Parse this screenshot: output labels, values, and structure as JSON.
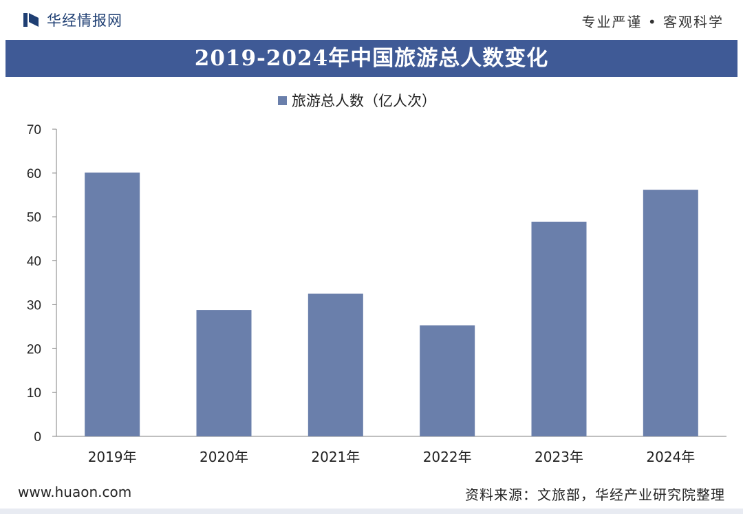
{
  "header": {
    "brand_name": "华经情报网",
    "slogan": "专业严谨 • 客观科学"
  },
  "colors": {
    "title_bar": "#3f5a96",
    "bar": "#6a7fab",
    "brand": "#1f3f73"
  },
  "chart_data": {
    "type": "bar",
    "title": "2019-2024年中国旅游总人数变化",
    "categories": [
      "2019年",
      "2020年",
      "2021年",
      "2022年",
      "2023年",
      "2024年"
    ],
    "series": [
      {
        "name": "旅游总人数（亿人次）",
        "values": [
          60.1,
          28.8,
          32.5,
          25.3,
          48.9,
          56.2
        ]
      }
    ],
    "ylim": [
      0,
      70
    ],
    "yticks": [
      0,
      10,
      20,
      30,
      40,
      50,
      60,
      70
    ],
    "grid": false,
    "legend_position": "top-center"
  },
  "footer": {
    "site": "www.huaon.com",
    "source": "资料来源：文旅部，华经产业研究院整理"
  }
}
